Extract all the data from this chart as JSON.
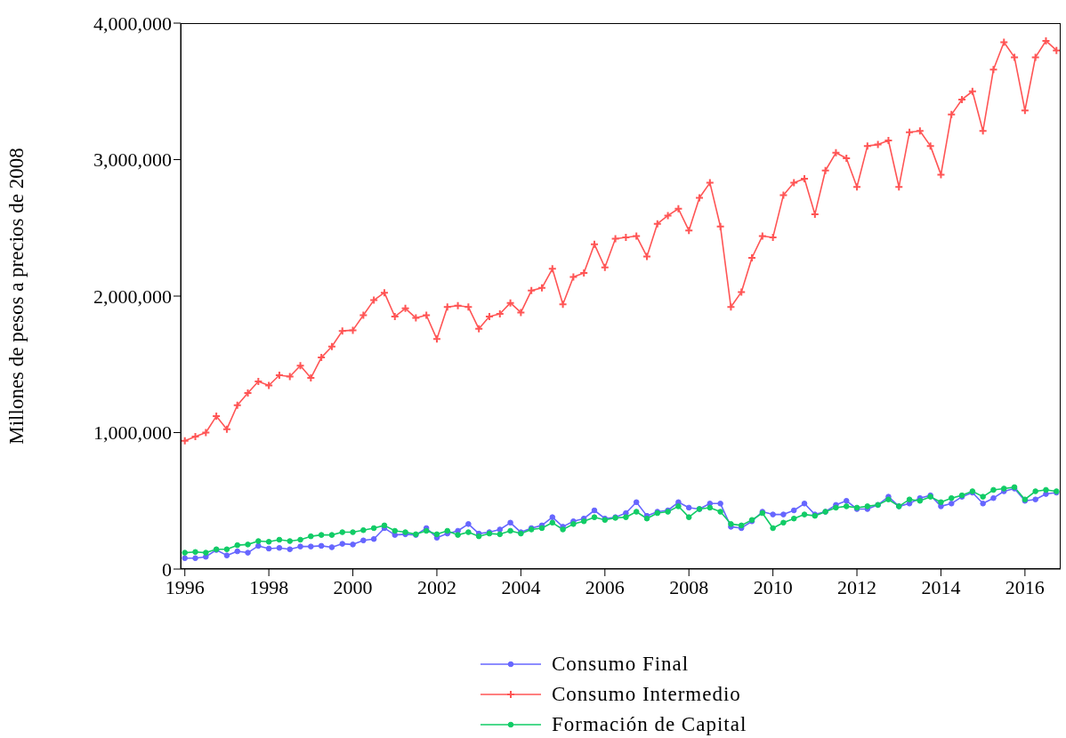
{
  "chart_data": {
    "type": "line",
    "ylabel": "Millones de pesos a precios de 2008",
    "x": [
      1996,
      1996.25,
      1996.5,
      1996.75,
      1997,
      1997.25,
      1997.5,
      1997.75,
      1998,
      1998.25,
      1998.5,
      1998.75,
      1999,
      1999.25,
      1999.5,
      1999.75,
      2000,
      2000.25,
      2000.5,
      2000.75,
      2001,
      2001.25,
      2001.5,
      2001.75,
      2002,
      2002.25,
      2002.5,
      2002.75,
      2003,
      2003.25,
      2003.5,
      2003.75,
      2004,
      2004.25,
      2004.5,
      2004.75,
      2005,
      2005.25,
      2005.5,
      2005.75,
      2006,
      2006.25,
      2006.5,
      2006.75,
      2007,
      2007.25,
      2007.5,
      2007.75,
      2008,
      2008.25,
      2008.5,
      2008.75,
      2009,
      2009.25,
      2009.5,
      2009.75,
      2010,
      2010.25,
      2010.5,
      2010.75,
      2011,
      2011.25,
      2011.5,
      2011.75,
      2012,
      2012.25,
      2012.5,
      2012.75,
      2013,
      2013.25,
      2013.5,
      2013.75,
      2014,
      2014.25,
      2014.5,
      2014.75,
      2015,
      2015.25,
      2015.5,
      2015.75,
      2016,
      2016.25,
      2016.5,
      2016.75
    ],
    "series": [
      {
        "name": "Consumo Final",
        "color": "#6666ff",
        "marker": "circle",
        "values": [
          80000,
          80000,
          90000,
          140000,
          100000,
          130000,
          120000,
          170000,
          150000,
          155000,
          145000,
          165000,
          165000,
          170000,
          160000,
          185000,
          180000,
          210000,
          220000,
          300000,
          250000,
          255000,
          250000,
          300000,
          230000,
          260000,
          280000,
          330000,
          260000,
          270000,
          290000,
          340000,
          270000,
          300000,
          320000,
          380000,
          310000,
          350000,
          370000,
          430000,
          370000,
          380000,
          410000,
          490000,
          390000,
          420000,
          430000,
          490000,
          450000,
          440000,
          480000,
          480000,
          310000,
          300000,
          350000,
          420000,
          400000,
          400000,
          430000,
          480000,
          400000,
          420000,
          470000,
          500000,
          440000,
          440000,
          470000,
          530000,
          460000,
          480000,
          520000,
          540000,
          460000,
          480000,
          530000,
          560000,
          480000,
          520000,
          570000,
          590000,
          500000,
          510000,
          550000,
          560000
        ]
      },
      {
        "name": "Consumo Intermedio",
        "color": "#ff5555",
        "marker": "cross",
        "values": [
          940000,
          970000,
          1000000,
          1120000,
          1025000,
          1200000,
          1290000,
          1375000,
          1345000,
          1420000,
          1410000,
          1490000,
          1400000,
          1550000,
          1630000,
          1745000,
          1750000,
          1860000,
          1970000,
          2025000,
          1850000,
          1910000,
          1840000,
          1860000,
          1685000,
          1920000,
          1930000,
          1920000,
          1760000,
          1850000,
          1870000,
          1950000,
          1880000,
          2040000,
          2060000,
          2200000,
          1940000,
          2140000,
          2170000,
          2380000,
          2210000,
          2420000,
          2430000,
          2440000,
          2290000,
          2530000,
          2590000,
          2640000,
          2480000,
          2720000,
          2830000,
          2510000,
          1920000,
          2030000,
          2280000,
          2440000,
          2430000,
          2740000,
          2830000,
          2860000,
          2600000,
          2920000,
          3050000,
          3010000,
          2800000,
          3100000,
          3110000,
          3140000,
          2800000,
          3200000,
          3210000,
          3100000,
          2890000,
          3330000,
          3440000,
          3500000,
          3210000,
          3660000,
          3860000,
          3750000,
          3360000,
          3750000,
          3870000,
          3800000
        ]
      },
      {
        "name": "Formación de Capital",
        "color": "#11cc66",
        "marker": "circle",
        "values": [
          120000,
          125000,
          120000,
          145000,
          145000,
          175000,
          180000,
          205000,
          200000,
          215000,
          205000,
          215000,
          240000,
          250000,
          250000,
          270000,
          270000,
          285000,
          300000,
          320000,
          280000,
          270000,
          255000,
          280000,
          255000,
          280000,
          250000,
          270000,
          240000,
          260000,
          255000,
          280000,
          260000,
          290000,
          300000,
          340000,
          290000,
          330000,
          350000,
          380000,
          360000,
          375000,
          380000,
          420000,
          370000,
          410000,
          420000,
          460000,
          380000,
          440000,
          450000,
          420000,
          330000,
          320000,
          360000,
          410000,
          300000,
          340000,
          370000,
          400000,
          390000,
          420000,
          450000,
          460000,
          450000,
          460000,
          470000,
          510000,
          460000,
          510000,
          500000,
          530000,
          490000,
          520000,
          540000,
          570000,
          530000,
          580000,
          590000,
          600000,
          510000,
          570000,
          580000,
          570000
        ]
      }
    ],
    "xlim": [
      1995.9,
      2016.85
    ],
    "xticks": [
      1996,
      1998,
      2000,
      2002,
      2004,
      2006,
      2008,
      2010,
      2012,
      2014,
      2016
    ],
    "ylim": [
      0,
      4000000
    ],
    "yticks": [
      {
        "value": 0,
        "label": "0"
      },
      {
        "value": 1000000,
        "label": "1,000,000"
      },
      {
        "value": 2000000,
        "label": "2,000,000"
      },
      {
        "value": 3000000,
        "label": "3,000,000"
      },
      {
        "value": 4000000,
        "label": "4,000,000"
      }
    ],
    "grid": false,
    "legend": "bottom",
    "line_style": "solid"
  }
}
